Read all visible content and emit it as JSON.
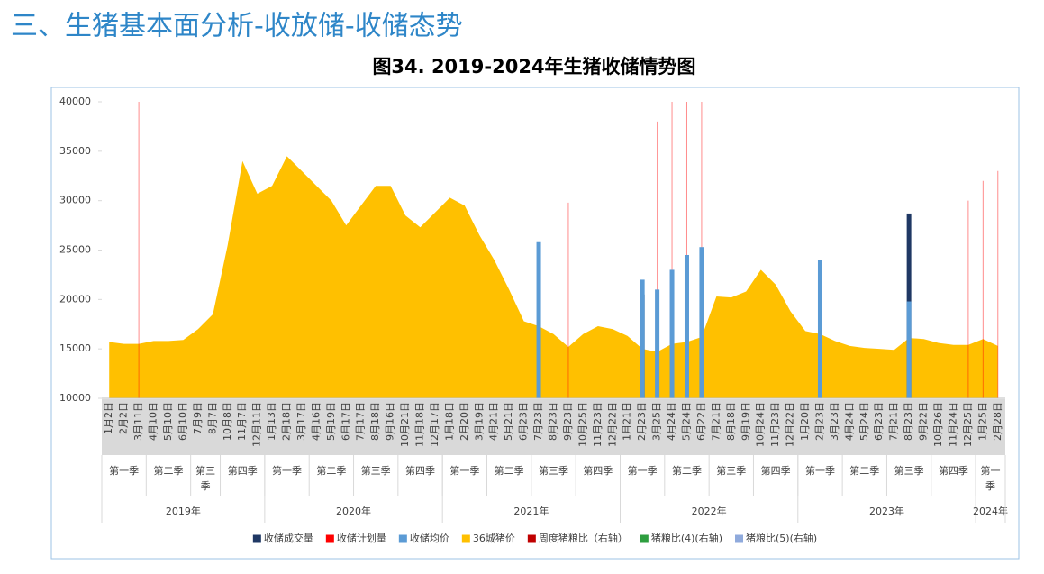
{
  "header": {
    "title": "三、生猪基本面分析-收放储-收储态势"
  },
  "chart_data": {
    "type": "combo",
    "title": "图34. 2019-2024年生猪收储情势图",
    "years": [
      {
        "label": "2019年",
        "quarters": [
          {
            "label": "第一季",
            "categories": [
              "1月2日",
              "2月2日",
              "3月11日"
            ]
          },
          {
            "label": "第二季",
            "categories": [
              "4月10日",
              "5月10日",
              "6月10日"
            ]
          },
          {
            "label": "第三季",
            "categories": [
              "7月9日",
              "8月7日"
            ]
          },
          {
            "label": "第四季",
            "categories": [
              "10月8日",
              "11月7日",
              "12月11日"
            ]
          }
        ]
      },
      {
        "label": "2020年",
        "quarters": [
          {
            "label": "第一季",
            "categories": [
              "1月13日",
              "2月18日",
              "3月17日"
            ]
          },
          {
            "label": "第二季",
            "categories": [
              "4月16日",
              "5月19日",
              "6月17日"
            ]
          },
          {
            "label": "第三季",
            "categories": [
              "7月17日",
              "8月18日",
              "9月16日"
            ]
          },
          {
            "label": "第四季",
            "categories": [
              "10月21日",
              "11月18日",
              "12月17日"
            ]
          }
        ]
      },
      {
        "label": "2021年",
        "quarters": [
          {
            "label": "第一季",
            "categories": [
              "1月18日",
              "2月20日",
              "3月19日"
            ]
          },
          {
            "label": "第二季",
            "categories": [
              "4月21日",
              "5月21日",
              "6月23日"
            ]
          },
          {
            "label": "第三季",
            "categories": [
              "7月23日",
              "8月23日",
              "9月23日"
            ]
          },
          {
            "label": "第四季",
            "categories": [
              "10月25日",
              "11月23日",
              "12月22日"
            ]
          }
        ]
      },
      {
        "label": "2022年",
        "quarters": [
          {
            "label": "第一季",
            "categories": [
              "1月21日",
              "2月23日",
              "3月25日"
            ]
          },
          {
            "label": "第二季",
            "categories": [
              "4月24日",
              "5月24日",
              "6月22日"
            ]
          },
          {
            "label": "第三季",
            "categories": [
              "7月21日",
              "8月18日",
              "9月19日"
            ]
          },
          {
            "label": "第四季",
            "categories": [
              "10月24日",
              "11月23日",
              "12月22日"
            ]
          }
        ]
      },
      {
        "label": "2023年",
        "quarters": [
          {
            "label": "第一季",
            "categories": [
              "1月20日",
              "2月23日",
              "3月23日"
            ]
          },
          {
            "label": "第二季",
            "categories": [
              "4月24日",
              "5月24日",
              "6月23日"
            ]
          },
          {
            "label": "第三季",
            "categories": [
              "7月21日",
              "8月23日",
              "9月22日"
            ]
          },
          {
            "label": "第四季",
            "categories": [
              "10月26日",
              "11月24日",
              "12月25日"
            ]
          }
        ]
      },
      {
        "label": "2024年",
        "quarters": [
          {
            "label": "第一季",
            "categories": [
              "1月25日",
              "2月28日"
            ]
          }
        ]
      }
    ],
    "ylim": [
      10000,
      40000
    ],
    "yticks": [
      10000,
      15000,
      20000,
      25000,
      30000,
      35000,
      40000
    ],
    "series": [
      {
        "name": "收储成交量",
        "type": "bar",
        "color": "#1f3864",
        "values": [
          null,
          null,
          null,
          null,
          null,
          null,
          null,
          null,
          null,
          null,
          null,
          null,
          null,
          null,
          null,
          null,
          null,
          null,
          null,
          null,
          null,
          null,
          null,
          null,
          null,
          null,
          null,
          null,
          null,
          null,
          null,
          null,
          null,
          null,
          null,
          null,
          20500,
          null,
          null,
          null,
          null,
          null,
          null,
          null,
          null,
          null,
          null,
          null,
          null,
          null,
          null,
          null,
          null,
          null,
          28700,
          null,
          null,
          null,
          null,
          null,
          null
        ]
      },
      {
        "name": "收储计划量",
        "type": "vline",
        "color": "#ff0000",
        "values": [
          null,
          null,
          40000,
          null,
          null,
          null,
          null,
          null,
          null,
          null,
          null,
          null,
          null,
          null,
          null,
          null,
          null,
          null,
          null,
          null,
          null,
          null,
          null,
          null,
          null,
          null,
          null,
          null,
          null,
          null,
          null,
          29800,
          null,
          null,
          null,
          null,
          null,
          38000,
          40000,
          40000,
          40000,
          null,
          null,
          null,
          null,
          null,
          null,
          null,
          null,
          null,
          null,
          null,
          null,
          null,
          null,
          null,
          null,
          null,
          30000,
          32000,
          33000
        ]
      },
      {
        "name": "收储均价",
        "type": "bar",
        "color": "#5b9bd5",
        "values": [
          null,
          null,
          null,
          null,
          null,
          null,
          null,
          null,
          null,
          null,
          null,
          null,
          null,
          null,
          null,
          null,
          null,
          null,
          null,
          null,
          null,
          null,
          null,
          null,
          null,
          null,
          null,
          null,
          null,
          25800,
          null,
          null,
          null,
          null,
          null,
          null,
          22000,
          21000,
          23000,
          24500,
          25300,
          null,
          null,
          null,
          null,
          null,
          null,
          null,
          24000,
          null,
          null,
          null,
          null,
          null,
          19800,
          null,
          null,
          null,
          null,
          null,
          null
        ]
      },
      {
        "name": "36城猪价",
        "type": "area",
        "color": "#ffc000",
        "values": [
          15700,
          15500,
          15500,
          15800,
          15800,
          15900,
          17000,
          18500,
          25500,
          34000,
          30700,
          31500,
          34500,
          33000,
          31500,
          30000,
          27500,
          29500,
          31500,
          31500,
          28500,
          27300,
          28800,
          30300,
          29500,
          26500,
          24000,
          21000,
          17800,
          17300,
          16500,
          15200,
          16500,
          17300,
          17000,
          16300,
          15000,
          14700,
          15500,
          15700,
          16200,
          20300,
          20200,
          20800,
          23000,
          21500,
          18800,
          16800,
          16500,
          15800,
          15300,
          15100,
          15000,
          14900,
          16100,
          16000,
          15600,
          15400,
          15400,
          16000,
          15300
        ]
      },
      {
        "name": "周度猪粮比（右轴）",
        "type": "line",
        "color": "#c00000",
        "values": [
          null,
          null,
          null,
          null,
          null,
          null,
          null,
          null,
          null,
          null,
          null,
          null,
          null,
          null,
          null,
          null,
          null,
          null,
          null,
          null,
          null,
          null,
          null,
          null,
          null,
          null,
          null,
          null,
          null,
          null,
          null,
          null,
          null,
          null,
          null,
          null,
          null,
          null,
          null,
          null,
          null,
          null,
          null,
          null,
          null,
          null,
          null,
          null,
          null,
          null,
          null,
          null,
          null,
          null,
          null,
          null,
          null,
          null,
          null,
          null,
          null
        ]
      },
      {
        "name": "猪粮比(4)(右轴)",
        "type": "line",
        "color": "#2e9e3f",
        "values": [
          null,
          null,
          null,
          null,
          null,
          null,
          null,
          null,
          null,
          null,
          null,
          null,
          null,
          null,
          null,
          null,
          null,
          null,
          null,
          null,
          null,
          null,
          null,
          null,
          null,
          null,
          null,
          null,
          null,
          null,
          null,
          null,
          null,
          null,
          null,
          null,
          null,
          null,
          null,
          null,
          null,
          null,
          null,
          null,
          null,
          null,
          null,
          null,
          null,
          null,
          null,
          null,
          null,
          null,
          null,
          null,
          null,
          null,
          null,
          null,
          null
        ]
      },
      {
        "name": "猪粮比(5)(右轴)",
        "type": "line",
        "color": "#8faadc",
        "values": [
          null,
          null,
          null,
          null,
          null,
          null,
          null,
          null,
          null,
          null,
          null,
          null,
          null,
          null,
          null,
          null,
          null,
          null,
          null,
          null,
          null,
          null,
          null,
          null,
          null,
          null,
          null,
          null,
          null,
          null,
          null,
          null,
          null,
          null,
          null,
          null,
          null,
          null,
          null,
          null,
          null,
          null,
          null,
          null,
          null,
          null,
          null,
          null,
          null,
          null,
          null,
          null,
          null,
          null,
          null,
          null,
          null,
          null,
          null,
          null,
          null
        ]
      }
    ]
  }
}
